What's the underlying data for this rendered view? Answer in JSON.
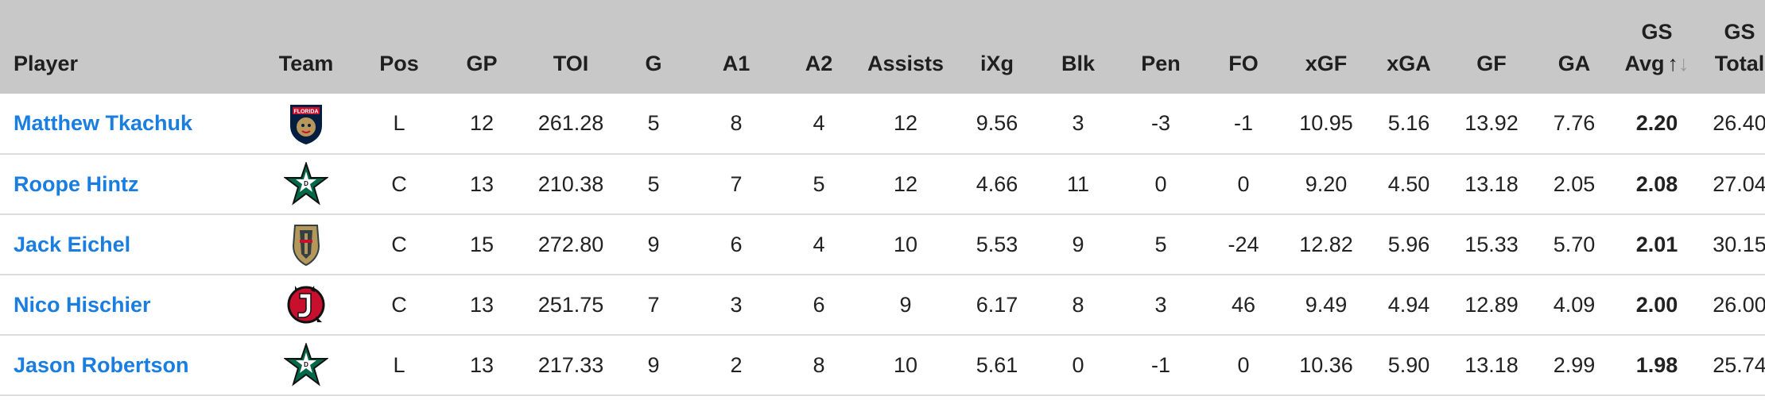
{
  "headers": {
    "player": "Player",
    "team": "Team",
    "pos": "Pos",
    "gp": "GP",
    "toi": "TOI",
    "g": "G",
    "a1": "A1",
    "a2": "A2",
    "assists": "Assists",
    "ixg": "iXg",
    "blk": "Blk",
    "pen": "Pen",
    "fo": "FO",
    "xgf": "xGF",
    "xga": "xGA",
    "gf": "GF",
    "ga": "GA",
    "gs_avg_1": "GS",
    "gs_avg_2": "Avg",
    "gs_total_1": "GS",
    "gs_total_2": "Total"
  },
  "rows": [
    {
      "player": "Matthew Tkachuk",
      "team_icon": "florida-panthers-logo",
      "pos": "L",
      "gp": "12",
      "toi": "261.28",
      "g": "5",
      "a1": "8",
      "a2": "4",
      "assists": "12",
      "ixg": "9.56",
      "blk": "3",
      "pen": "-3",
      "fo": "-1",
      "xgf": "10.95",
      "xga": "5.16",
      "gf": "13.92",
      "ga": "7.76",
      "gs_avg": "2.20",
      "gs_total": "26.40"
    },
    {
      "player": "Roope Hintz",
      "team_icon": "dallas-stars-logo",
      "pos": "C",
      "gp": "13",
      "toi": "210.38",
      "g": "5",
      "a1": "7",
      "a2": "5",
      "assists": "12",
      "ixg": "4.66",
      "blk": "11",
      "pen": "0",
      "fo": "0",
      "xgf": "9.20",
      "xga": "4.50",
      "gf": "13.18",
      "ga": "2.05",
      "gs_avg": "2.08",
      "gs_total": "27.04"
    },
    {
      "player": "Jack Eichel",
      "team_icon": "vegas-golden-knights-logo",
      "pos": "C",
      "gp": "15",
      "toi": "272.80",
      "g": "9",
      "a1": "6",
      "a2": "4",
      "assists": "10",
      "ixg": "5.53",
      "blk": "9",
      "pen": "5",
      "fo": "-24",
      "xgf": "12.82",
      "xga": "5.96",
      "gf": "15.33",
      "ga": "5.70",
      "gs_avg": "2.01",
      "gs_total": "30.15"
    },
    {
      "player": "Nico Hischier",
      "team_icon": "new-jersey-devils-logo",
      "pos": "C",
      "gp": "13",
      "toi": "251.75",
      "g": "7",
      "a1": "3",
      "a2": "6",
      "assists": "9",
      "ixg": "6.17",
      "blk": "8",
      "pen": "3",
      "fo": "46",
      "xgf": "9.49",
      "xga": "4.94",
      "gf": "12.89",
      "ga": "4.09",
      "gs_avg": "2.00",
      "gs_total": "26.00"
    },
    {
      "player": "Jason Robertson",
      "team_icon": "dallas-stars-logo",
      "pos": "L",
      "gp": "13",
      "toi": "217.33",
      "g": "9",
      "a1": "2",
      "a2": "8",
      "assists": "10",
      "ixg": "5.61",
      "blk": "0",
      "pen": "-1",
      "fo": "0",
      "xgf": "10.36",
      "xga": "5.90",
      "gf": "13.18",
      "ga": "2.99",
      "gs_avg": "1.98",
      "gs_total": "25.74"
    }
  ],
  "colors": {
    "header_bg": "#c8c8c8",
    "link": "#1a7de0",
    "row_border": "#dcdcdc"
  },
  "sort": {
    "column": "gs_avg",
    "indicator_icons": [
      "sort-up-arrow-icon",
      "sort-down-arrow-icon"
    ]
  }
}
